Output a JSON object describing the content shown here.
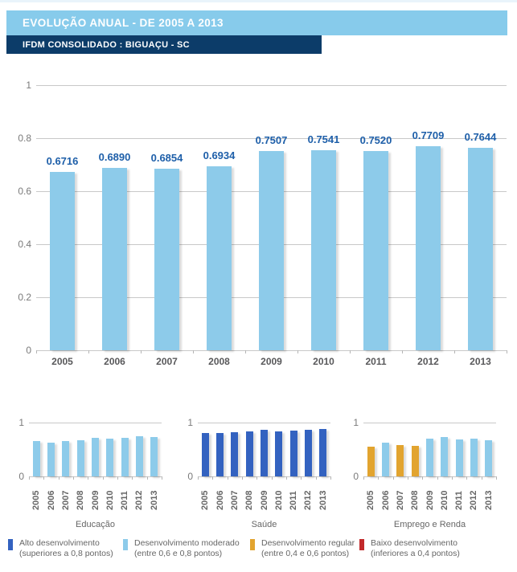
{
  "header": {
    "title": "EVOLUÇÃO ANUAL - DE 2005 A 2013",
    "subtitle": "IFDM CONSOLIDADO : BIGUAÇU - SC"
  },
  "colors": {
    "header_bar": "#87cbeb",
    "subtitle_bar": "#0c3c69",
    "alto": "#3362c0",
    "moderado": "#8dcbea",
    "regular": "#e2a42f",
    "baixo": "#c2292b",
    "value_label": "#1e5fa9",
    "grid": "#c8c8c8",
    "axis_text": "#7a7a7a",
    "category_text": "#58585a"
  },
  "chart_data": [
    {
      "type": "bar",
      "name": "ifdm-consolidado",
      "title": "",
      "categories": [
        "2005",
        "2006",
        "2007",
        "2008",
        "2009",
        "2010",
        "2011",
        "2012",
        "2013"
      ],
      "values": [
        0.6716,
        0.689,
        0.6854,
        0.6934,
        0.7507,
        0.7541,
        0.752,
        0.7709,
        0.7644
      ],
      "value_labels": [
        "0.6716",
        "0.6890",
        "0.6854",
        "0.6934",
        "0.7507",
        "0.7541",
        "0.7520",
        "0.7709",
        "0.7644"
      ],
      "levels": [
        "moderado",
        "moderado",
        "moderado",
        "moderado",
        "moderado",
        "moderado",
        "moderado",
        "moderado",
        "moderado"
      ],
      "ylim": [
        0,
        1
      ],
      "yticks": [
        "1",
        "0.8",
        "0.6",
        "0.4",
        "0.2",
        "0"
      ],
      "grid": true,
      "legend_position": "bottom"
    },
    {
      "type": "bar",
      "name": "educacao",
      "title": "Educação",
      "categories": [
        "2005",
        "2006",
        "2007",
        "2008",
        "2009",
        "2010",
        "2011",
        "2012",
        "2013"
      ],
      "values": [
        0.66,
        0.63,
        0.65,
        0.67,
        0.71,
        0.7,
        0.72,
        0.74,
        0.73
      ],
      "levels": [
        "moderado",
        "moderado",
        "moderado",
        "moderado",
        "moderado",
        "moderado",
        "moderado",
        "moderado",
        "moderado"
      ],
      "ylim": [
        0,
        1
      ],
      "yticks": [
        "1",
        "0"
      ],
      "grid": true
    },
    {
      "type": "bar",
      "name": "saude",
      "title": "Saúde",
      "categories": [
        "2005",
        "2006",
        "2007",
        "2008",
        "2009",
        "2010",
        "2011",
        "2012",
        "2013"
      ],
      "values": [
        0.8,
        0.81,
        0.82,
        0.84,
        0.86,
        0.83,
        0.85,
        0.87,
        0.88
      ],
      "levels": [
        "alto",
        "alto",
        "alto",
        "alto",
        "alto",
        "alto",
        "alto",
        "alto",
        "alto"
      ],
      "ylim": [
        0,
        1
      ],
      "yticks": [
        "1",
        "0"
      ],
      "grid": true
    },
    {
      "type": "bar",
      "name": "emprego-e-renda",
      "title": "Emprego e Renda",
      "categories": [
        "2005",
        "2006",
        "2007",
        "2008",
        "2009",
        "2010",
        "2011",
        "2012",
        "2013"
      ],
      "values": [
        0.55,
        0.63,
        0.58,
        0.57,
        0.7,
        0.73,
        0.68,
        0.7,
        0.67
      ],
      "levels": [
        "regular",
        "moderado",
        "regular",
        "regular",
        "moderado",
        "moderado",
        "moderado",
        "moderado",
        "moderado"
      ],
      "ylim": [
        0,
        1
      ],
      "yticks": [
        "1",
        "0"
      ],
      "grid": true
    }
  ],
  "legend": {
    "items": [
      {
        "key": "alto",
        "label": "Alto desenvolvimento",
        "sublabel": "(superiores a 0,8 pontos)",
        "color": "#3362c0"
      },
      {
        "key": "moderado",
        "label": "Desenvolvimento moderado",
        "sublabel": "(entre 0,6 e 0,8 pontos)",
        "color": "#8dcbea"
      },
      {
        "key": "regular",
        "label": "Desenvolvimento regular",
        "sublabel": "(entre 0,4 e 0,6 pontos)",
        "color": "#e2a42f"
      },
      {
        "key": "baixo",
        "label": "Baixo desenvolvimento",
        "sublabel": "(inferiores a 0,4 pontos)",
        "color": "#c2292b"
      }
    ]
  }
}
